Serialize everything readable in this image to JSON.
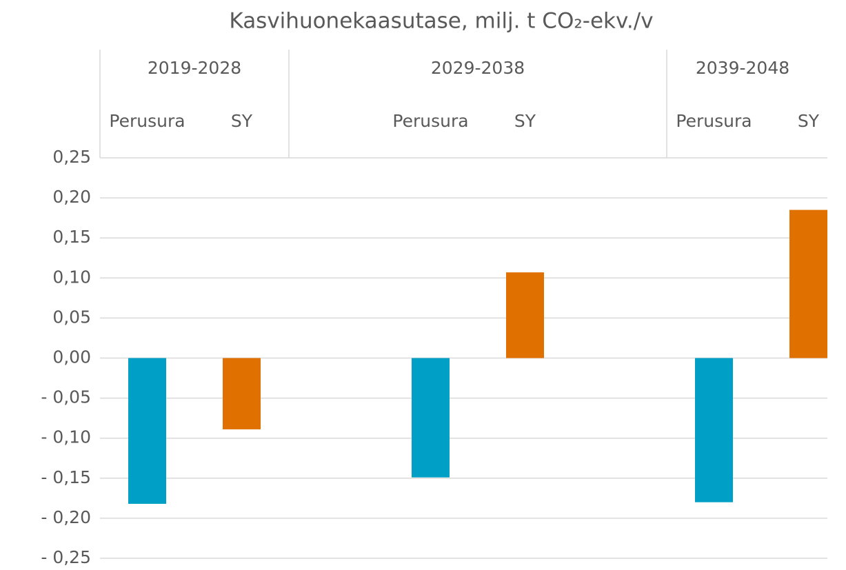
{
  "chart_data": {
    "type": "bar",
    "title": "Kasvihuonekaasutase, milj. t CO₂-ekv./v",
    "groups": [
      {
        "label": "2019-2028",
        "size": 2
      },
      {
        "label": "2029-2038",
        "size": 4
      },
      {
        "label": "2039-2048",
        "size": 2
      }
    ],
    "categories": [
      "Perusura",
      "SY",
      null,
      "Perusura",
      "SY",
      null,
      "Perusura",
      "SY"
    ],
    "values": [
      -0.182,
      -0.089,
      null,
      -0.149,
      0.107,
      null,
      -0.18,
      0.185
    ],
    "colors": [
      "#00a0c6",
      "#e07000",
      null,
      "#00a0c6",
      "#e07000",
      null,
      "#00a0c6",
      "#e07000"
    ],
    "ylim": [
      -0.25,
      0.25
    ],
    "yticks": [
      {
        "value": -0.25,
        "label": "- 0,25"
      },
      {
        "value": -0.2,
        "label": "- 0,20"
      },
      {
        "value": -0.15,
        "label": "- 0,15"
      },
      {
        "value": -0.1,
        "label": "- 0,10"
      },
      {
        "value": -0.05,
        "label": "- 0,05"
      },
      {
        "value": 0,
        "label": "0,00"
      },
      {
        "value": 0.05,
        "label": "0,05"
      },
      {
        "value": 0.1,
        "label": "0,10"
      },
      {
        "value": 0.15,
        "label": "0,15"
      },
      {
        "value": 0.2,
        "label": "0,20"
      },
      {
        "value": 0.25,
        "label": "0,25"
      }
    ],
    "grid": true
  }
}
